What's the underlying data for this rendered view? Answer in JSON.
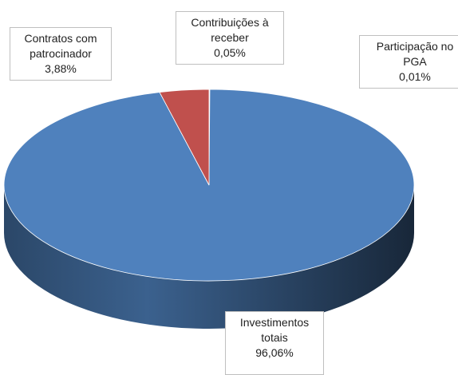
{
  "chart_data": {
    "type": "pie",
    "categories": [
      "Contribuições à receber",
      "Participação no PGA",
      "Investimentos totais",
      "Contratos com patrocinador"
    ],
    "values": [
      0.05,
      0.01,
      96.06,
      3.88
    ],
    "value_labels": [
      "0,05%",
      "0,01%",
      "96,06%",
      "3,88%"
    ],
    "colors": [
      "#9bbb59",
      "#8064a2",
      "#4f81bd",
      "#c0504d"
    ]
  }
}
